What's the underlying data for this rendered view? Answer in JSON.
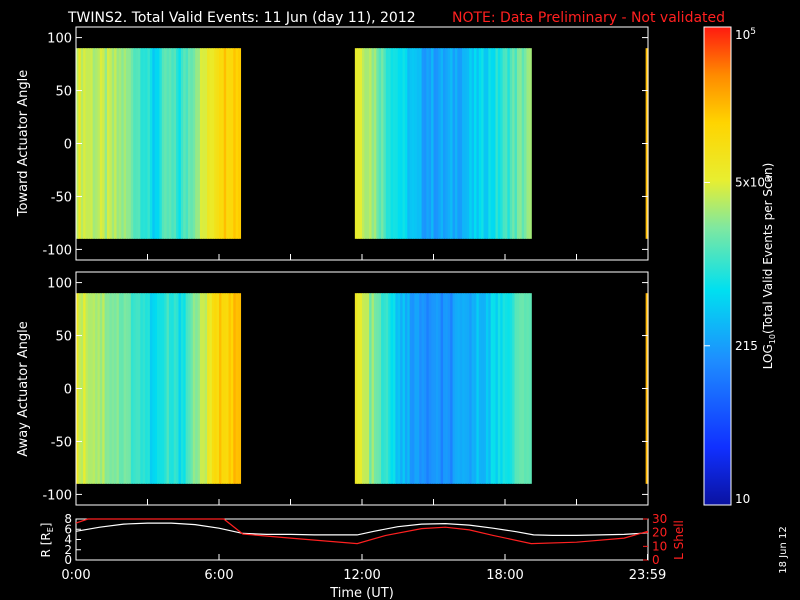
{
  "header": {
    "title": "TWINS2. Total Valid Events: 11 Jun (day  11), 2012",
    "note": "NOTE: Data Preliminary - Not validated",
    "note_color": "#ff2020"
  },
  "stamp": "18 Jun 12",
  "colors": {
    "background": "#000000",
    "axes": "#ffffff",
    "r_line": "#ffffff",
    "lshell_line": "#ff2020"
  },
  "chart_data": [
    {
      "type": "heatmap",
      "ylabel": "Toward Actuator Angle",
      "ylim": [
        -110,
        110
      ],
      "yticks": [
        -100,
        -50,
        0,
        50,
        100
      ],
      "xlim_hours": [
        0,
        24
      ],
      "angle_range": [
        -90,
        90
      ],
      "data_blocks_ut_hours": [
        [
          0.0,
          6.9
        ],
        [
          11.7,
          19.1
        ],
        [
          23.9,
          24.0
        ]
      ],
      "colorscale_min": 10,
      "colorscale_max": 100000,
      "profile_sample_step_hours": 0.1,
      "level_profile": [
        {
          "t": 0.0,
          "v": 0.68
        },
        {
          "t": 0.7,
          "v": 0.64
        },
        {
          "t": 1.4,
          "v": 0.62
        },
        {
          "t": 2.0,
          "v": 0.6
        },
        {
          "t": 2.8,
          "v": 0.52
        },
        {
          "t": 3.2,
          "v": 0.42
        },
        {
          "t": 3.8,
          "v": 0.54
        },
        {
          "t": 4.3,
          "v": 0.48
        },
        {
          "t": 5.0,
          "v": 0.62
        },
        {
          "t": 5.6,
          "v": 0.7
        },
        {
          "t": 6.0,
          "v": 0.8
        },
        {
          "t": 6.9,
          "v": 0.82
        },
        {
          "t": 11.7,
          "v": 0.7
        },
        {
          "t": 12.4,
          "v": 0.62
        },
        {
          "t": 13.0,
          "v": 0.52
        },
        {
          "t": 13.8,
          "v": 0.42
        },
        {
          "t": 14.5,
          "v": 0.35
        },
        {
          "t": 15.5,
          "v": 0.34
        },
        {
          "t": 16.3,
          "v": 0.38
        },
        {
          "t": 17.0,
          "v": 0.43
        },
        {
          "t": 17.6,
          "v": 0.47
        },
        {
          "t": 18.4,
          "v": 0.55
        },
        {
          "t": 19.1,
          "v": 0.6
        },
        {
          "t": 23.9,
          "v": 0.8
        },
        {
          "t": 24.0,
          "v": 0.8
        }
      ]
    },
    {
      "type": "heatmap",
      "ylabel": "Away Actuator Angle",
      "ylim": [
        -110,
        110
      ],
      "yticks": [
        -100,
        -50,
        0,
        50,
        100
      ],
      "xlim_hours": [
        0,
        24
      ],
      "angle_range": [
        -90,
        90
      ],
      "data_blocks_ut_hours": [
        [
          0.0,
          6.9
        ],
        [
          11.7,
          19.1
        ],
        [
          23.9,
          24.0
        ]
      ],
      "colorscale_min": 10,
      "colorscale_max": 100000,
      "profile_sample_step_hours": 0.1,
      "level_profile": [
        {
          "t": 0.0,
          "v": 0.68
        },
        {
          "t": 0.7,
          "v": 0.64
        },
        {
          "t": 1.4,
          "v": 0.6
        },
        {
          "t": 2.0,
          "v": 0.56
        },
        {
          "t": 2.8,
          "v": 0.5
        },
        {
          "t": 3.2,
          "v": 0.42
        },
        {
          "t": 3.8,
          "v": 0.5
        },
        {
          "t": 4.3,
          "v": 0.46
        },
        {
          "t": 5.0,
          "v": 0.6
        },
        {
          "t": 5.6,
          "v": 0.7
        },
        {
          "t": 6.0,
          "v": 0.8
        },
        {
          "t": 6.9,
          "v": 0.82
        },
        {
          "t": 11.7,
          "v": 0.7
        },
        {
          "t": 12.4,
          "v": 0.58
        },
        {
          "t": 13.0,
          "v": 0.48
        },
        {
          "t": 13.8,
          "v": 0.36
        },
        {
          "t": 14.5,
          "v": 0.3
        },
        {
          "t": 15.5,
          "v": 0.3
        },
        {
          "t": 16.3,
          "v": 0.34
        },
        {
          "t": 17.0,
          "v": 0.4
        },
        {
          "t": 17.6,
          "v": 0.44
        },
        {
          "t": 18.4,
          "v": 0.52
        },
        {
          "t": 19.1,
          "v": 0.58
        },
        {
          "t": 23.9,
          "v": 0.8
        },
        {
          "t": 24.0,
          "v": 0.8
        }
      ]
    },
    {
      "type": "line",
      "xlabel": "Time (UT)",
      "xticks": [
        {
          "hour": 0,
          "label": "0:00"
        },
        {
          "hour": 6,
          "label": "6:00"
        },
        {
          "hour": 12,
          "label": "12:00"
        },
        {
          "hour": 18,
          "label": "18:00"
        },
        {
          "hour": 23.98,
          "label": "23:59"
        }
      ],
      "left_axis": {
        "label_prefix": "R [R",
        "label_sub": "E",
        "label_suffix": "]",
        "ylim": [
          0,
          8
        ],
        "yticks": [
          0,
          2,
          4,
          6,
          8
        ]
      },
      "right_axis": {
        "label": "L Shell",
        "ylim": [
          0,
          30
        ],
        "yticks": [
          0,
          10,
          20,
          30
        ]
      },
      "series": [
        {
          "name": "R",
          "axis": "left",
          "color": "#ffffff",
          "x": [
            0,
            1,
            2,
            3,
            4,
            5,
            6,
            7,
            8,
            9,
            10,
            11,
            11.8,
            12.5,
            13.5,
            14.5,
            15.5,
            16.5,
            17.5,
            18.5,
            19.2,
            20,
            21,
            22,
            23,
            24
          ],
          "y": [
            5.6,
            6.4,
            7.0,
            7.2,
            7.2,
            6.9,
            6.2,
            5.2,
            5.0,
            5.0,
            4.9,
            4.9,
            4.9,
            5.6,
            6.5,
            7.0,
            7.1,
            6.8,
            6.2,
            5.5,
            4.9,
            4.8,
            4.8,
            4.9,
            5.0,
            5.3
          ]
        },
        {
          "name": "L Shell",
          "axis": "right",
          "color": "#ff2020",
          "x": [
            0,
            0.5,
            1.0,
            5.6,
            6.2,
            7.0,
            9,
            11.8,
            13,
            14.5,
            15.5,
            16.5,
            17.5,
            19.1,
            21,
            23,
            24
          ],
          "y": [
            27,
            30,
            31,
            31,
            30,
            19,
            16,
            12,
            18,
            23,
            24,
            22,
            18,
            12,
            13,
            16,
            21
          ]
        }
      ]
    }
  ],
  "colorbar": {
    "label_prefix": "LOG",
    "label_sub": "10",
    "label_suffix": "(Total Valid Events per Scan)",
    "ticks": [
      {
        "value": 10,
        "text": "10"
      },
      {
        "value": 215,
        "text": "215"
      },
      {
        "value": 5000,
        "base": "5x10",
        "exp": "3"
      },
      {
        "value": 100000,
        "base": "10",
        "exp": "5"
      }
    ]
  }
}
